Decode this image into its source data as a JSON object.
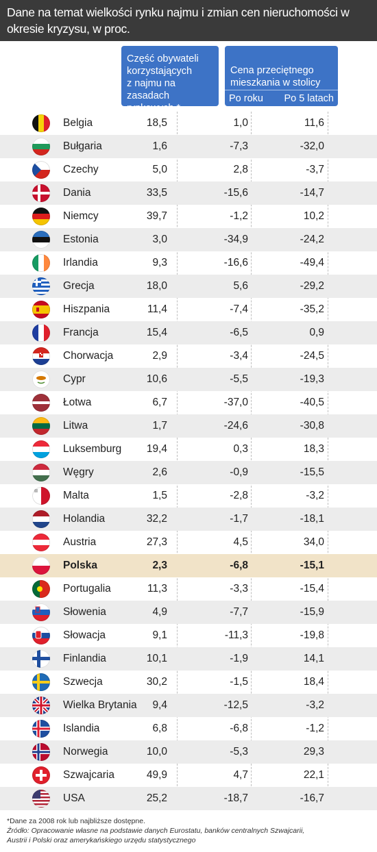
{
  "title": "Dane na temat wielkości rynku najmu i zmian cen nieruchomości w okresie kryzysu, w proc.",
  "headers": {
    "share_lines": [
      "Część obywateli",
      "korzystających",
      "z najmu na zasadach",
      "rynkowych *"
    ],
    "price_lines": [
      "Cena przeciętnego",
      "mieszkania w stolicy"
    ],
    "price_sub1": "Po roku",
    "price_sub2": "Po 5 latach"
  },
  "rows": [
    {
      "country": "Belgia",
      "flag": "be-flag-icon",
      "share": "18,5",
      "year": "1,0",
      "five": "11,6"
    },
    {
      "country": "Bułgaria",
      "flag": "bg-flag-icon",
      "share": "1,6",
      "year": "-7,3",
      "five": "-32,0"
    },
    {
      "country": "Czechy",
      "flag": "cz-flag-icon",
      "share": "5,0",
      "year": "2,8",
      "five": "-3,7"
    },
    {
      "country": "Dania",
      "flag": "dk-flag-icon",
      "share": "33,5",
      "year": "-15,6",
      "five": "-14,7"
    },
    {
      "country": "Niemcy",
      "flag": "de-flag-icon",
      "share": "39,7",
      "year": "-1,2",
      "five": "10,2"
    },
    {
      "country": "Estonia",
      "flag": "ee-flag-icon",
      "share": "3,0",
      "year": "-34,9",
      "five": "-24,2"
    },
    {
      "country": "Irlandia",
      "flag": "ie-flag-icon",
      "share": "9,3",
      "year": "-16,6",
      "five": "-49,4"
    },
    {
      "country": "Grecja",
      "flag": "gr-flag-icon",
      "share": "18,0",
      "year": "5,6",
      "five": "-29,2"
    },
    {
      "country": "Hiszpania",
      "flag": "es-flag-icon",
      "share": "11,4",
      "year": "-7,4",
      "five": "-35,2"
    },
    {
      "country": "Francja",
      "flag": "fr-flag-icon",
      "share": "15,4",
      "year": "-6,5",
      "five": "0,9"
    },
    {
      "country": "Chorwacja",
      "flag": "hr-flag-icon",
      "share": "2,9",
      "year": "-3,4",
      "five": "-24,5"
    },
    {
      "country": "Cypr",
      "flag": "cy-flag-icon",
      "share": "10,6",
      "year": "-5,5",
      "five": "-19,3"
    },
    {
      "country": "Łotwa",
      "flag": "lv-flag-icon",
      "share": "6,7",
      "year": "-37,0",
      "five": "-40,5"
    },
    {
      "country": "Litwa",
      "flag": "lt-flag-icon",
      "share": "1,7",
      "year": "-24,6",
      "five": "-30,8"
    },
    {
      "country": "Luksemburg",
      "flag": "lu-flag-icon",
      "share": "19,4",
      "year": "0,3",
      "five": "18,3"
    },
    {
      "country": "Węgry",
      "flag": "hu-flag-icon",
      "share": "2,6",
      "year": "-0,9",
      "five": "-15,5"
    },
    {
      "country": "Malta",
      "flag": "mt-flag-icon",
      "share": "1,5",
      "year": "-2,8",
      "five": "-3,2"
    },
    {
      "country": "Holandia",
      "flag": "nl-flag-icon",
      "share": "32,2",
      "year": "-1,7",
      "five": "-18,1"
    },
    {
      "country": "Austria",
      "flag": "at-flag-icon",
      "share": "27,3",
      "year": "4,5",
      "five": "34,0"
    },
    {
      "country": "Polska",
      "flag": "pl-flag-icon",
      "share": "2,3",
      "year": "-6,8",
      "five": "-15,1",
      "highlight": true
    },
    {
      "country": "Portugalia",
      "flag": "pt-flag-icon",
      "share": "11,3",
      "year": "-3,3",
      "five": "-15,4"
    },
    {
      "country": "Słowenia",
      "flag": "si-flag-icon",
      "share": "4,9",
      "year": "-7,7",
      "five": "-15,9"
    },
    {
      "country": "Słowacja",
      "flag": "sk-flag-icon",
      "share": "9,1",
      "year": "-11,3",
      "five": "-19,8"
    },
    {
      "country": "Finlandia",
      "flag": "fi-flag-icon",
      "share": "10,1",
      "year": "-1,9",
      "five": "14,1"
    },
    {
      "country": "Szwecja",
      "flag": "se-flag-icon",
      "share": "30,2",
      "year": "-1,5",
      "five": "18,4"
    },
    {
      "country": "Wielka Brytania",
      "flag": "gb-flag-icon",
      "share": "9,4",
      "year": "-12,5",
      "five": "-3,2"
    },
    {
      "country": "Islandia",
      "flag": "is-flag-icon",
      "share": "6,8",
      "year": "-6,8",
      "five": "-1,2"
    },
    {
      "country": "Norwegia",
      "flag": "no-flag-icon",
      "share": "10,0",
      "year": "-5,3",
      "five": "29,3"
    },
    {
      "country": "Szwajcaria",
      "flag": "ch-flag-icon",
      "share": "49,9",
      "year": "4,7",
      "five": "22,1"
    },
    {
      "country": "USA",
      "flag": "us-flag-icon",
      "share": "25,2",
      "year": "-18,7",
      "five": "-16,7"
    }
  ],
  "footnote": {
    "note": "*Dane za 2008 rok lub najbliższe dostępne.",
    "source_lines": [
      "Źródło: Opracowanie własne na podstawie danych Eurostatu, banków centralnych Szwajcarii,",
      "Austrii i Polski oraz amerykańskiego urzędu statystycznego"
    ]
  }
}
